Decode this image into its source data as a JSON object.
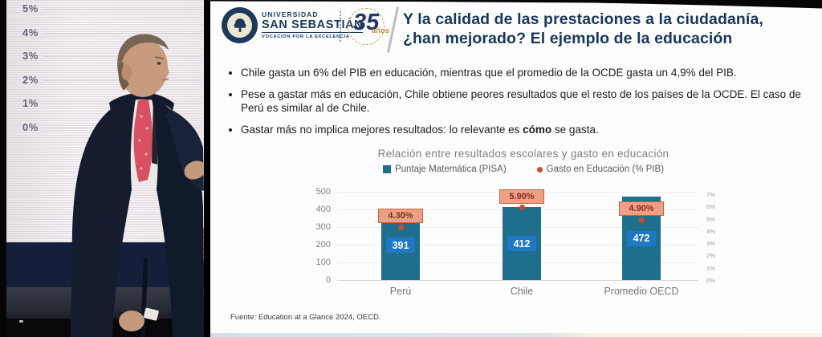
{
  "video": {
    "screen_axis_labels": [
      "5%",
      "4%",
      "3%",
      "2%",
      "1%",
      "0%"
    ]
  },
  "slide": {
    "logo": {
      "university_line1": "UNIVERSIDAD",
      "university_line2": "SAN SEBASTIÁN",
      "university_tagline": "VOCACIÓN POR LA EXCELENCIA",
      "anniversary_number": "35",
      "anniversary_label": "años"
    },
    "title_line1": "Y la calidad de las prestaciones a la ciudadanía,",
    "title_line2": "¿han mejorado? El ejemplo de la educación",
    "bullets": [
      {
        "text": "Chile gasta un 6% del PIB en educación, mientras que el promedio de la OCDE gasta un 4,9% del PIB."
      },
      {
        "text": "Pese a gastar más en educación, Chile obtiene peores resultados que el resto de los países de la OCDE. El caso de Perú es similar al de Chile."
      },
      {
        "pre": "Gastar más no implica mejores resultados: lo relevante es ",
        "bold": "cómo",
        "post": " se gasta."
      }
    ],
    "footer": "Fuente: Education at a Glance 2024, OECD."
  },
  "chart_data": {
    "type": "bar",
    "subtype": "combo bar + point markers, dual y-axis",
    "title": "Relación entre resultados escolares y gasto en educación",
    "categories": [
      "Perú",
      "Chile",
      "Promedio OECD"
    ],
    "series": [
      {
        "name": "Puntaje Matemática (PISA)",
        "type": "bar",
        "axis": "left",
        "values": [
          391,
          412,
          472
        ],
        "labels": [
          "391",
          "412",
          "472"
        ],
        "color": "#1e6f8e"
      },
      {
        "name": "Gasto en Educación (% PIB)",
        "type": "point",
        "axis": "right",
        "values": [
          4.3,
          5.9,
          4.9
        ],
        "labels": [
          "4.30%",
          "5.90%",
          "4.90%"
        ],
        "color": "#cf4a2a"
      }
    ],
    "left_axis": {
      "min": 0,
      "max": 500,
      "ticks": [
        "0",
        "100",
        "200",
        "300",
        "400",
        "500"
      ]
    },
    "right_axis": {
      "min": 0,
      "max": 7,
      "ticks": [
        "0%",
        "1%",
        "2%",
        "3%",
        "4%",
        "5%",
        "6%",
        "7%"
      ]
    },
    "legend_position": "top",
    "grid": true
  },
  "colors": {
    "title_navy": "#16375e",
    "bar_teal": "#1e6f8e",
    "value_box_blue": "#1f78c5",
    "pct_box_salmon": "#efa083",
    "pct_text_maroon": "#7e2d23",
    "marker_orange": "#cf4a2a",
    "stage_backdrop_navy": "#161f3a"
  }
}
